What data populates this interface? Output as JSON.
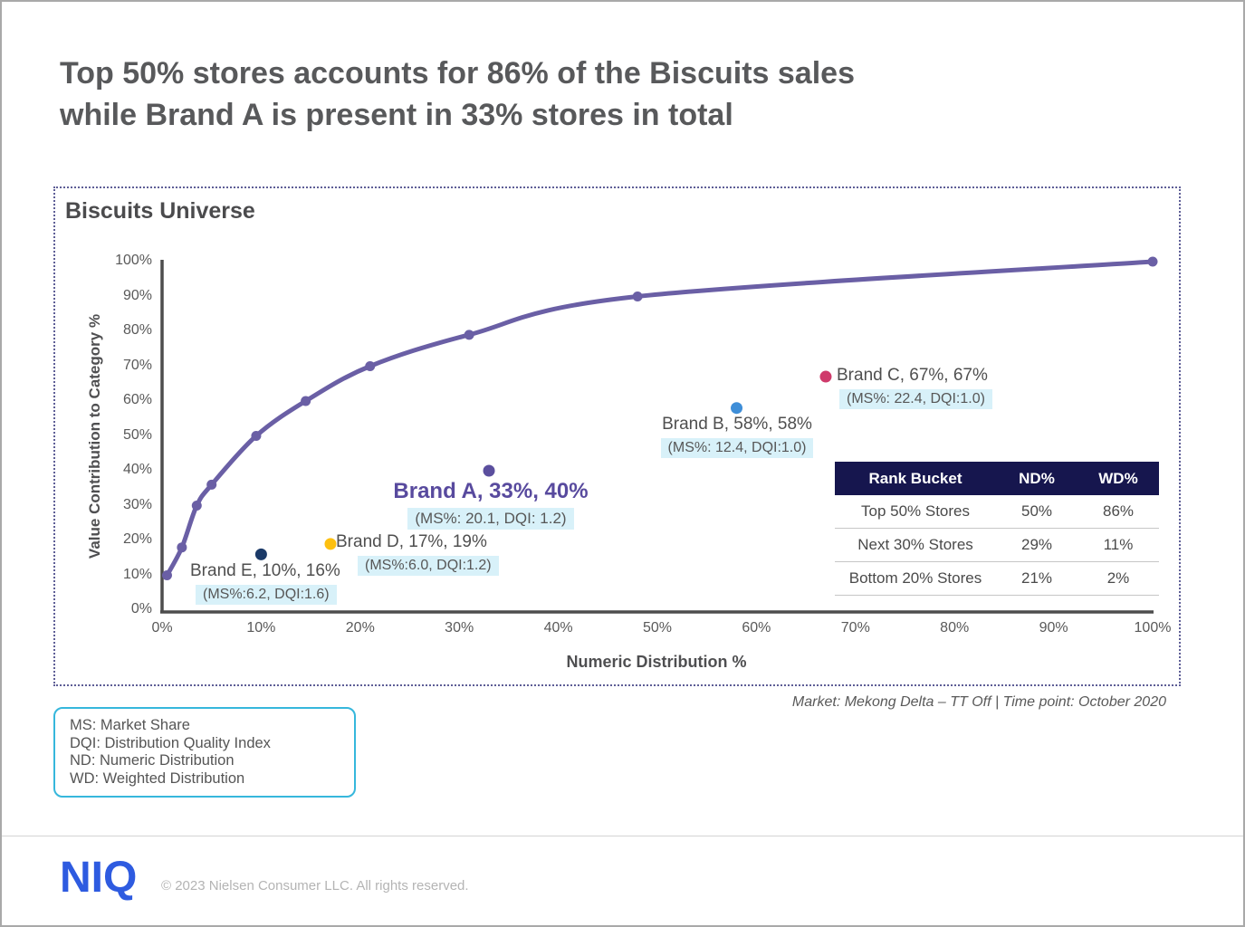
{
  "page": {
    "title_line1": "Top 50% stores accounts for 86% of the Biscuits sales",
    "title_line2": "while Brand A is present in 33% stores in total"
  },
  "panel": {
    "title": "Biscuits Universe",
    "source_note": "Market: Mekong Delta – TT Off | Time point: October 2020"
  },
  "chart_data": {
    "type": "line",
    "title": "Biscuits Universe",
    "xlabel": "Numeric Distribution %",
    "ylabel": "Value Contribution to Category %",
    "xlim": [
      0,
      100
    ],
    "ylim": [
      0,
      100
    ],
    "grid": false,
    "x_ticks": [
      "0%",
      "10%",
      "20%",
      "30%",
      "40%",
      "50%",
      "60%",
      "70%",
      "80%",
      "90%",
      "100%"
    ],
    "y_ticks": [
      "0%",
      "10%",
      "20%",
      "30%",
      "40%",
      "50%",
      "60%",
      "70%",
      "80%",
      "90%",
      "100%"
    ],
    "curve": {
      "name": "cumulative-value-contribution-curve",
      "color": "#6a5fa5",
      "points": [
        [
          0.5,
          10
        ],
        [
          2,
          18
        ],
        [
          3.5,
          30
        ],
        [
          5,
          36
        ],
        [
          9.5,
          50
        ],
        [
          14.5,
          60
        ],
        [
          21,
          70
        ],
        [
          31,
          79
        ],
        [
          48,
          90
        ],
        [
          100,
          100
        ]
      ]
    },
    "brands": [
      {
        "name": "Brand A",
        "nd": 33,
        "wd": 40,
        "ms": 20.1,
        "dqi": 1.2,
        "color": "#5b4f9e",
        "label": "Brand A, 33%, 40%",
        "detail": "(MS%: 20.1, DQI: 1.2)"
      },
      {
        "name": "Brand B",
        "nd": 58,
        "wd": 58,
        "ms": 12.4,
        "dqi": 1.0,
        "color": "#3e8ed8",
        "label": "Brand B, 58%, 58%",
        "detail": "(MS%: 12.4, DQI:1.0)"
      },
      {
        "name": "Brand C",
        "nd": 67,
        "wd": 67,
        "ms": 22.4,
        "dqi": 1.0,
        "color": "#cf3a6b",
        "label": "Brand C, 67%, 67%",
        "detail": "(MS%: 22.4, DQI:1.0)"
      },
      {
        "name": "Brand D",
        "nd": 17,
        "wd": 19,
        "ms": 6.0,
        "dqi": 1.2,
        "color": "#fdc010",
        "label": "Brand D, 17%, 19%",
        "detail": "(MS%:6.0, DQI:1.2)"
      },
      {
        "name": "Brand E",
        "nd": 10,
        "wd": 16,
        "ms": 6.2,
        "dqi": 1.6,
        "color": "#1b3a68",
        "label": "Brand E, 10%, 16%",
        "detail": "(MS%:6.2, DQI:1.6)"
      }
    ],
    "table": {
      "headers": [
        "Rank Bucket",
        "ND%",
        "WD%"
      ],
      "rows": [
        [
          "Top 50% Stores",
          "50%",
          "86%"
        ],
        [
          "Next 30% Stores",
          "29%",
          "11%"
        ],
        [
          "Bottom 20% Stores",
          "21%",
          "2%"
        ]
      ]
    }
  },
  "legend_box": {
    "lines": [
      "MS: Market Share",
      "DQI: Distribution Quality Index",
      "ND: Numeric Distribution",
      "WD: Weighted Distribution"
    ]
  },
  "footer": {
    "logo": "NIQ",
    "copyright": "© 2023 Nielsen Consumer LLC. All rights reserved."
  },
  "colors": {
    "accent_cyan": "#36b7dc",
    "highlight_bg": "#d8f1f9",
    "niq_blue": "#2e5be0",
    "table_header_bg": "#16164e",
    "curve_purple": "#6a5fa5",
    "axis_gray": "#4d4d4d",
    "title_gray": "#58595b",
    "dotted_border": "#5e5e96"
  }
}
